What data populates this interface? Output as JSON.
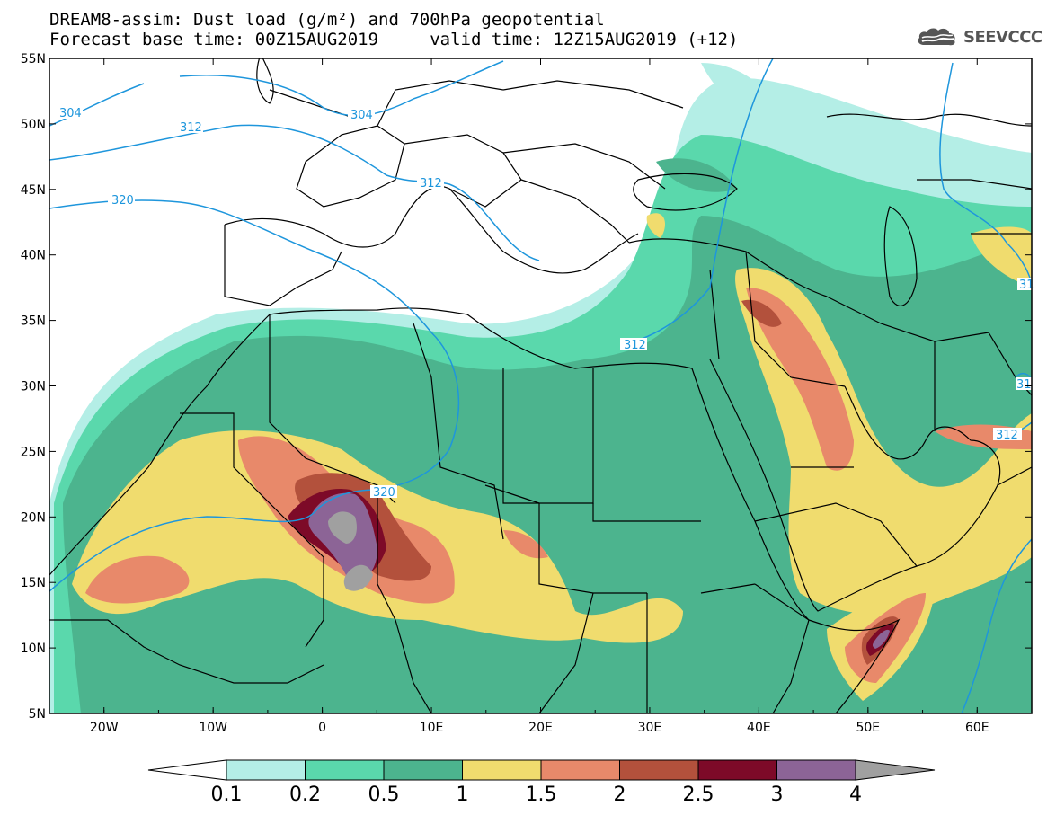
{
  "header": {
    "line1": "DREAM8-assim: Dust load (g/m²) and 700hPa geopotential",
    "line2": "Forecast base time: 00Z15AUG2019     valid time: 12Z15AUG2019 (+12)",
    "logo_text": "SEEVCCC",
    "logo_icon": "cloud-icon"
  },
  "map": {
    "lat_range": [
      5,
      55
    ],
    "lon_range": [
      -25,
      65
    ],
    "lat_ticks": [
      "55N",
      "50N",
      "45N",
      "40N",
      "35N",
      "30N",
      "25N",
      "20N",
      "15N",
      "10N",
      "5N"
    ],
    "lon_ticks": [
      "20W",
      "10W",
      "0",
      "10E",
      "20E",
      "30E",
      "40E",
      "50E",
      "60E"
    ],
    "isolines": [
      {
        "label": "304",
        "color": "#1e96dc"
      },
      {
        "label": "304",
        "color": "#1e96dc"
      },
      {
        "label": "312",
        "color": "#1e96dc"
      },
      {
        "label": "312",
        "color": "#1e96dc"
      },
      {
        "label": "312",
        "color": "#1e96dc"
      },
      {
        "label": "312",
        "color": "#1e96dc"
      },
      {
        "label": "320",
        "color": "#1e96dc"
      },
      {
        "label": "320",
        "color": "#1e96dc"
      },
      {
        "label": "31",
        "color": "#1e96dc"
      },
      {
        "label": "31",
        "color": "#1e96dc"
      }
    ]
  },
  "colorbar": {
    "levels": [
      "0.1",
      "0.2",
      "0.5",
      "1",
      "1.5",
      "2",
      "2.5",
      "3",
      "4"
    ],
    "colors": [
      "#ffffff",
      "#b4eee6",
      "#5ad8ac",
      "#4cb48e",
      "#f0dc6e",
      "#e8896a",
      "#b3513c",
      "#7d0a28",
      "#8c6496",
      "#a0a0a0"
    ]
  }
}
